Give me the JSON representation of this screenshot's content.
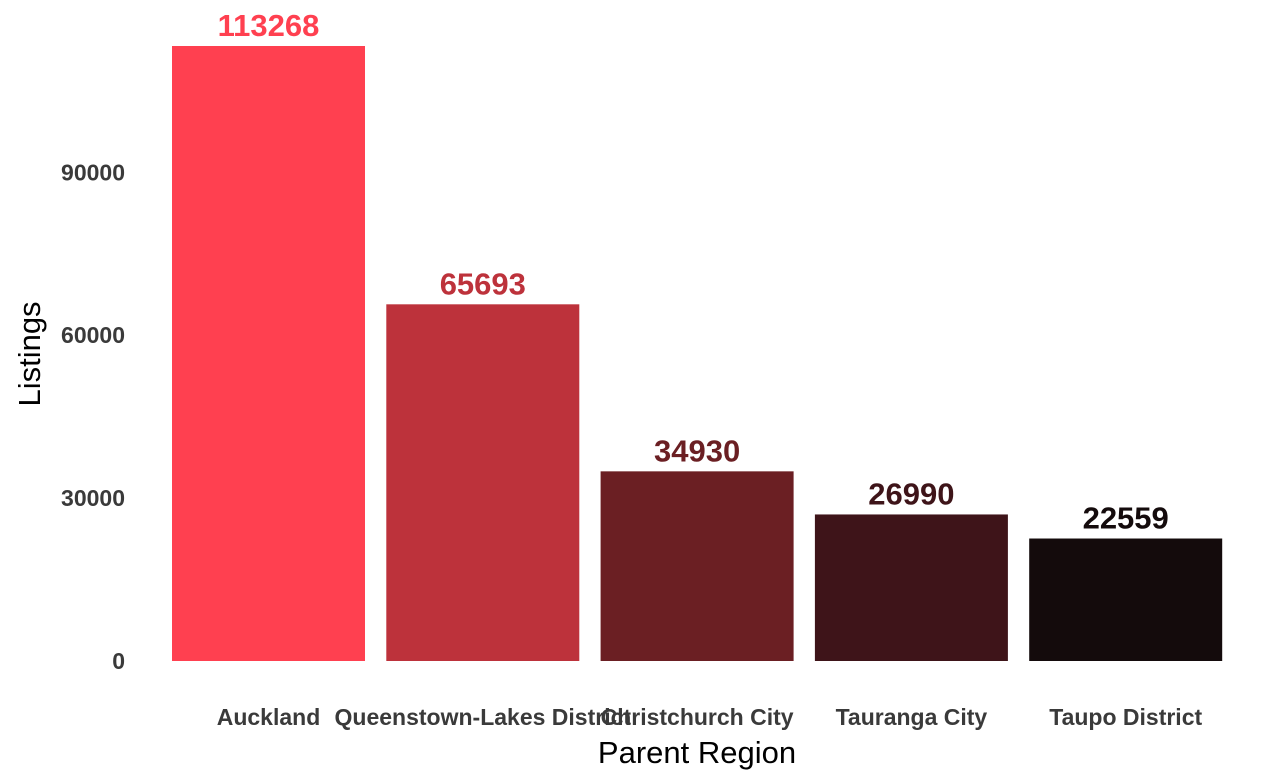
{
  "chart_data": {
    "type": "bar",
    "title": "",
    "xlabel": "Parent Region",
    "ylabel": "Listings",
    "categories": [
      "Auckland",
      "Queenstown-Lakes District",
      "Christchurch City",
      "Tauranga City",
      "Taupo District"
    ],
    "values": [
      113268,
      65693,
      34930,
      26990,
      22559
    ],
    "value_labels": [
      "113268",
      "65693",
      "34930",
      "26990",
      "22559"
    ],
    "colors": [
      "#ff4050",
      "#bd323b",
      "#6b1f23",
      "#3e1419",
      "#140b0c"
    ],
    "yticks": [
      0,
      30000,
      60000,
      90000
    ],
    "ytick_labels": [
      "0",
      "30000",
      "60000",
      "90000"
    ],
    "ylim": [
      0,
      113268
    ],
    "grid": false,
    "legend": "none"
  }
}
